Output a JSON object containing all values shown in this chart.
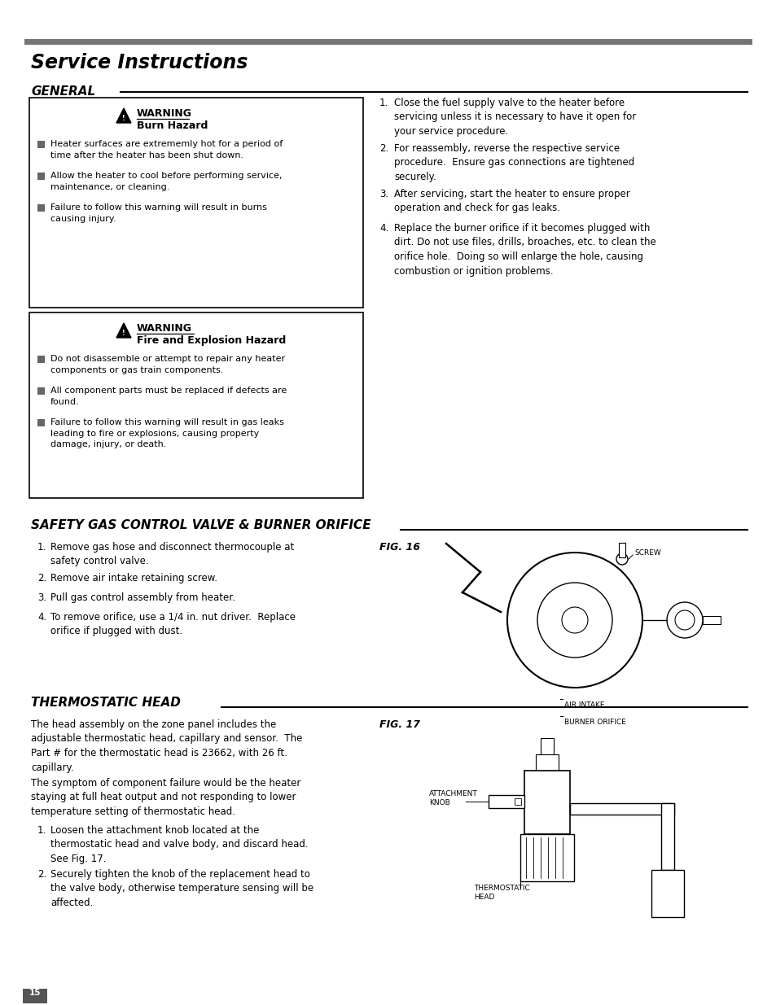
{
  "page_bg": "#ffffff",
  "top_bar_color": "#757575",
  "title": "Service Instructions",
  "section1_header": "GENERAL",
  "section2_header": "SAFETY GAS CONTROL VALVE & BURNER ORIFICE",
  "section3_header": "THERMOSTATIC HEAD",
  "warning1_title": "WARNING",
  "warning1_sub": "Burn Hazard",
  "warning1_bullets": [
    "Heater surfaces are extrememly hot for a period of\ntime after the heater has been shut down.",
    "Allow the heater to cool before performing service,\nmaintenance, or cleaning.",
    "Failure to follow this warning will result in burns\ncausing injury."
  ],
  "warning2_title": "WARNING",
  "warning2_sub": "Fire and Explosion Hazard",
  "warning2_bullets": [
    "Do not disassemble or attempt to repair any heater\ncomponents or gas train components.",
    "All component parts must be replaced if defects are\nfound.",
    "Failure to follow this warning will result in gas leaks\nleading to fire or explosions, causing property\ndamage, injury, or death."
  ],
  "right_items": [
    "Close the fuel supply valve to the heater before\nservicing unless it is necessary to have it open for\nyour service procedure.",
    "For reassembly, reverse the respective service\nprocedure.  Ensure gas connections are tightened\nsecurely.",
    "After servicing, start the heater to ensure proper\noperation and check for gas leaks.",
    "Replace the burner orifice if it becomes plugged with\ndirt. Do not use files, drills, broaches, etc. to clean the\norifice hole.  Doing so will enlarge the hole, causing\ncombustion or ignition problems."
  ],
  "safety_items": [
    "Remove gas hose and disconnect thermocouple at\nsafety control valve.",
    "Remove air intake retaining screw.",
    "Pull gas control assembly from heater.",
    "To remove orifice, use a 1/4 in. nut driver.  Replace\norifice if plugged with dust."
  ],
  "thermo_para1": "The head assembly on the zone panel includes the\nadjustable thermostatic head, capillary and sensor.  The\nPart # for the thermostatic head is 23662, with 26 ft.\ncapillary.",
  "thermo_para2": "The symptom of component failure would be the heater\nstaying at full heat output and not responding to lower\ntemperature setting of thermostatic head.",
  "thermo_items": [
    "Loosen the attachment knob located at the\nthermostatic head and valve body, and discard head.\nSee Fig. 17.",
    "Securely tighten the knob of the replacement head to\nthe valve body, otherwise temperature sensing will be\naffected."
  ],
  "page_number": "15",
  "fig16_label": "FIG. 16",
  "fig17_label": "FIG. 17"
}
